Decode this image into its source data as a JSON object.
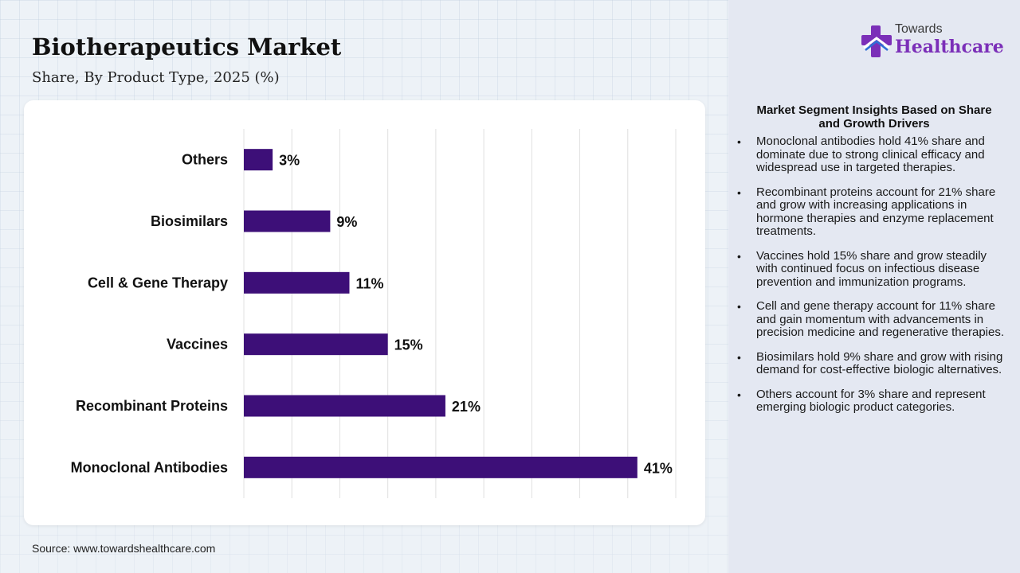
{
  "header": {
    "title": "Biotherapeutics Market",
    "subtitle": "Share, By Product Type, 2025 (%)"
  },
  "logo": {
    "line1": "Towards",
    "line2": "Healthcare",
    "icon": "healthcare-cross-icon"
  },
  "source": "Source: www.towardshealthcare.com",
  "colors": {
    "bar": "#3d0f78",
    "brand_purple": "#7b2fb8",
    "brand_blue": "#2f6fd6",
    "panel": "#e4e8f2"
  },
  "chart_data": {
    "type": "bar",
    "orientation": "horizontal",
    "categories": [
      "Others",
      "Biosimilars",
      "Cell & Gene Therapy",
      "Vaccines",
      "Recombinant Proteins",
      "Monoclonal Antibodies"
    ],
    "values": [
      3,
      9,
      11,
      15,
      21,
      41
    ],
    "value_labels": [
      "3%",
      "9%",
      "11%",
      "15%",
      "21%",
      "41%"
    ],
    "xlim": [
      0,
      45
    ],
    "grid": true,
    "grid_step": 5
  },
  "insights": {
    "title": "Market Segment Insights Based on Share and Growth Drivers",
    "items": [
      "Monoclonal antibodies hold 41% share and dominate due to strong clinical efficacy and widespread use in targeted therapies.",
      "Recombinant proteins account for 21% share and grow with increasing applications in hormone therapies and enzyme replacement treatments.",
      "Vaccines hold 15% share and grow steadily with continued focus on infectious disease prevention and immunization programs.",
      "Cell and gene therapy account for 11% share and gain momentum with advancements in precision medicine and regenerative therapies.",
      "Biosimilars hold 9% share and grow with rising demand for cost-effective biologic alternatives.",
      "Others account for 3% share and represent emerging biologic product categories."
    ]
  }
}
